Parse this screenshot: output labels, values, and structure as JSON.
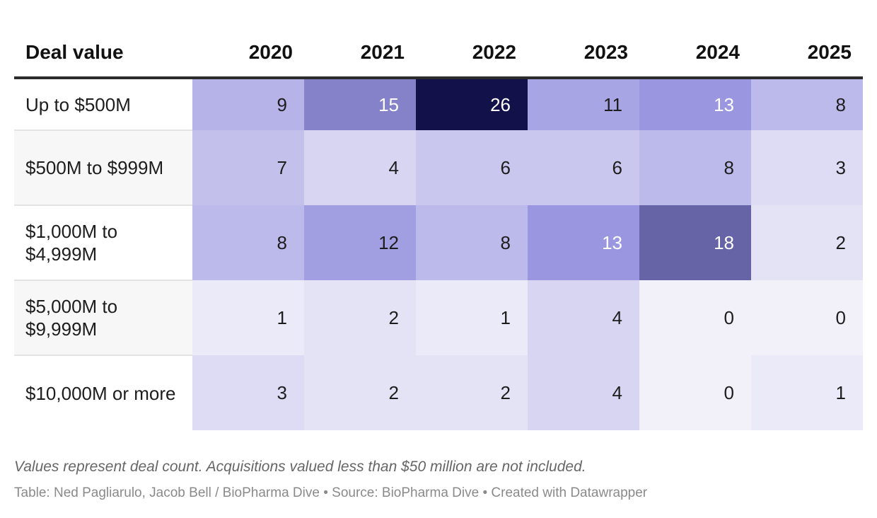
{
  "chart_data": {
    "type": "heatmap",
    "row_header": "Deal value",
    "columns": [
      "2020",
      "2021",
      "2022",
      "2023",
      "2024",
      "2025"
    ],
    "rows": [
      {
        "label": "Up to $500M",
        "values": [
          9,
          15,
          26,
          11,
          13,
          8
        ]
      },
      {
        "label": "$500M to $999M",
        "values": [
          7,
          4,
          6,
          6,
          8,
          3
        ]
      },
      {
        "label": "$1,000M to $4,999M",
        "values": [
          8,
          12,
          8,
          13,
          18,
          2
        ]
      },
      {
        "label": "$5,000M to $9,999M",
        "values": [
          1,
          2,
          1,
          4,
          0,
          0
        ]
      },
      {
        "label": "$10,000M or more",
        "values": [
          3,
          2,
          2,
          4,
          0,
          1
        ]
      }
    ],
    "color_scale": {
      "min": 0,
      "max": 26,
      "low_color": "#f2f1fa",
      "mid_color": "#9a97e0",
      "high_color": "#12114a"
    },
    "note": "Values represent deal count. Acquisitions valued less than $50 million are not included.",
    "credits": "Table: Ned Pagliarulo, Jacob Bell / BioPharma Dive • Source: BioPharma Dive • Created with Datawrapper"
  }
}
